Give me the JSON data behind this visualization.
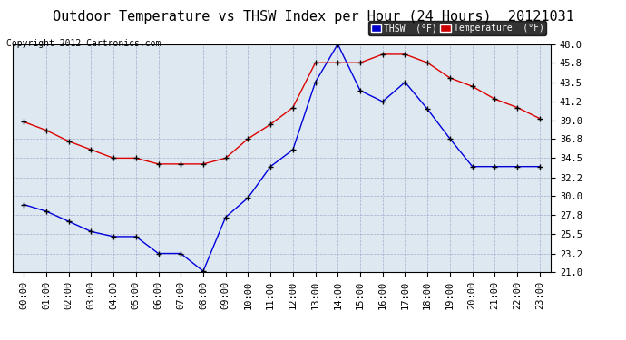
{
  "title": "Outdoor Temperature vs THSW Index per Hour (24 Hours)  20121031",
  "copyright": "Copyright 2012 Cartronics.com",
  "hours": [
    "00:00",
    "01:00",
    "02:00",
    "03:00",
    "04:00",
    "05:00",
    "06:00",
    "07:00",
    "08:00",
    "09:00",
    "10:00",
    "11:00",
    "12:00",
    "13:00",
    "14:00",
    "15:00",
    "16:00",
    "17:00",
    "18:00",
    "19:00",
    "20:00",
    "21:00",
    "22:00",
    "23:00"
  ],
  "thsw": [
    29.0,
    28.2,
    27.0,
    25.8,
    25.2,
    25.2,
    23.2,
    23.2,
    21.1,
    27.5,
    29.8,
    33.5,
    35.5,
    43.5,
    48.0,
    42.5,
    41.2,
    43.5,
    40.3,
    36.8,
    33.5,
    33.5,
    33.5,
    33.5
  ],
  "temperature": [
    38.8,
    37.8,
    36.5,
    35.5,
    34.5,
    34.5,
    33.8,
    33.8,
    33.8,
    34.5,
    36.8,
    38.5,
    40.5,
    45.8,
    45.8,
    45.8,
    46.8,
    46.8,
    45.8,
    44.0,
    43.0,
    41.5,
    40.5,
    39.2
  ],
  "ylim": [
    21.0,
    48.0
  ],
  "yticks": [
    21.0,
    23.2,
    25.5,
    27.8,
    30.0,
    32.2,
    34.5,
    36.8,
    39.0,
    41.2,
    43.5,
    45.8,
    48.0
  ],
  "thsw_color": "#0000dd",
  "temp_color": "#dd0000",
  "background_color": "#ffffff",
  "plot_bg_color": "#dde8f0",
  "grid_color": "#aaaacc",
  "legend_thsw_bg": "#0000cc",
  "legend_temp_bg": "#cc0000",
  "title_fontsize": 11,
  "axis_fontsize": 7.5,
  "copyright_fontsize": 7
}
